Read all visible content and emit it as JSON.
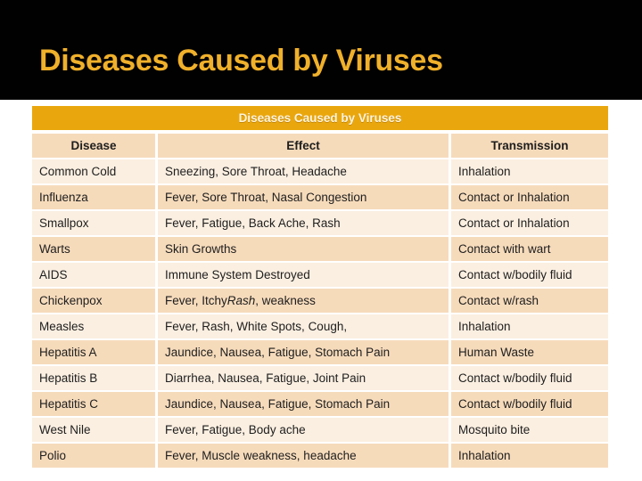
{
  "slide": {
    "title": "Diseases Caused by Viruses"
  },
  "colors": {
    "band_black": "#010101",
    "title_gold": "#F0B02A",
    "caption_bar": "#EAA70D",
    "caption_text": "#FCF4E0",
    "row_peach": "#F6DBBB",
    "row_cream": "#FBEFE1",
    "cell_text": "#1E1E1E"
  },
  "table": {
    "caption": "Diseases Caused by Viruses",
    "columns": [
      "Disease",
      "Effect",
      "Transmission"
    ],
    "rows": [
      {
        "disease": "Common Cold",
        "effect": [
          {
            "text": "Sneezing, Sore Throat, Headache"
          }
        ],
        "transmission": "Inhalation"
      },
      {
        "disease": "Influenza",
        "effect": [
          {
            "text": "Fever, Sore Throat, Nasal Congestion"
          }
        ],
        "transmission": "Contact or Inhalation"
      },
      {
        "disease": "Smallpox",
        "effect": [
          {
            "text": "Fever, Fatigue, Back Ache, Rash"
          }
        ],
        "transmission": "Contact or Inhalation"
      },
      {
        "disease": "Warts",
        "effect": [
          {
            "text": "Skin Growths"
          }
        ],
        "transmission": "Contact with wart"
      },
      {
        "disease": "AIDS",
        "effect": [
          {
            "text": "Immune System Destroyed"
          }
        ],
        "transmission": "Contact w/bodily fluid"
      },
      {
        "disease": "Chickenpox",
        "effect": [
          {
            "text": "Fever, Itchy "
          },
          {
            "text": "Rash",
            "italic": true
          },
          {
            "text": ", weakness"
          }
        ],
        "transmission": "Contact w/rash"
      },
      {
        "disease": "Measles",
        "effect": [
          {
            "text": "Fever, Rash, White Spots, Cough,"
          }
        ],
        "transmission": "Inhalation"
      },
      {
        "disease": "Hepatitis A",
        "effect": [
          {
            "text": "Jaundice, Nausea, Fatigue, Stomach Pain"
          }
        ],
        "transmission": "Human Waste"
      },
      {
        "disease": "Hepatitis B",
        "effect": [
          {
            "text": "Diarrhea, Nausea, Fatigue, Joint Pain"
          }
        ],
        "transmission": "Contact w/bodily fluid"
      },
      {
        "disease": "Hepatitis C",
        "effect": [
          {
            "text": "Jaundice, Nausea, Fatigue, Stomach Pain"
          }
        ],
        "transmission": "Contact w/bodily fluid"
      },
      {
        "disease": "West Nile",
        "effect": [
          {
            "text": "Fever, Fatigue, Body ache"
          }
        ],
        "transmission": "Mosquito bite"
      },
      {
        "disease": "Polio",
        "effect": [
          {
            "text": "Fever, Muscle weakness, headache"
          }
        ],
        "transmission": "Inhalation"
      }
    ]
  }
}
